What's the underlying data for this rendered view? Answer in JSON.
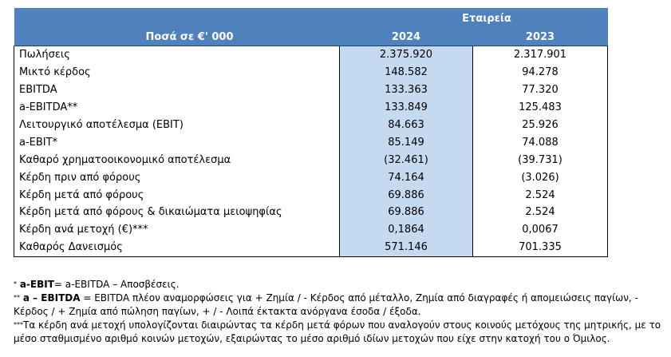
{
  "table": {
    "header_label": "Ποσά  σε €' 000",
    "company_label": "Εταιρεία",
    "years": [
      "2024",
      "2023"
    ],
    "rows": [
      {
        "label": "Πωλήσεις",
        "v2024": "2.375.920",
        "v2023": "2.317.901"
      },
      {
        "label": "Μικτό κέρδος",
        "v2024": "148.582",
        "v2023": "94.278"
      },
      {
        "label": "EBITDA",
        "v2024": "133.363",
        "v2023": "77.320"
      },
      {
        "label": "a-EBITDA**",
        "v2024": "133.849",
        "v2023": "125.483"
      },
      {
        "label": "Λειτουργικό αποτέλεσμα (EBIT)",
        "v2024": "84.663",
        "v2023": "25.926"
      },
      {
        "label": "a-EBIT*",
        "v2024": "85.149",
        "v2023": "74.088"
      },
      {
        "label": "Καθαρό χρηματοοικονομικό αποτέλεσμα",
        "v2024": "(32.461)",
        "v2023": "(39.731)"
      },
      {
        "label": "Κέρδη πριν από φόρους",
        "v2024": "74.164",
        "v2023": "(3.026)"
      },
      {
        "label": "Κέρδη μετά από φόρους",
        "v2024": "69.886",
        "v2023": "2.524"
      },
      {
        "label": "Κέρδη μετά από φόρους & δικαιώματα μειοψηφίας",
        "v2024": "69.886",
        "v2023": "2.524"
      },
      {
        "label": "Κέρδη ανά μετοχή (€)***",
        "v2024": "0,1864",
        "v2023": "0,0067"
      },
      {
        "label": "Καθαρός Δανεισμός",
        "v2024": "571.146",
        "v2023": "701.335"
      }
    ]
  },
  "notes": {
    "n1_mark": "*",
    "n1_term": "a-EBIT",
    "n1_text": "= a-EBITDA – Αποσβέσεις.",
    "n2_mark": "**",
    "n2_term": "a – EBITDA",
    "n2_text": "= EBITDA πλέον αναμορφώσεις για + Ζημία / - Κέρδος από μέταλλο, Ζημία από διαγραφές ή απομειώσεις παγίων, - Κέρδος / + Ζημία από πώληση παγίων, + / - Λοιπά έκτακτα ανόργανα έσοδα / έξοδα.",
    "n3_mark": "***",
    "n3_text": "Τα κέρδη ανά μετοχή υπολογίζονται διαιρώντας τα κέρδη μετά φόρων που αναλογούν στους κοινούς μετόχους της μητρικής, με το μέσο σταθμισμένο αριθμό κοινών μετοχών, εξαιρώντας το μέσο αριθμό ιδίων μετοχών που είχε στην κατοχή του ο Όμιλος."
  }
}
